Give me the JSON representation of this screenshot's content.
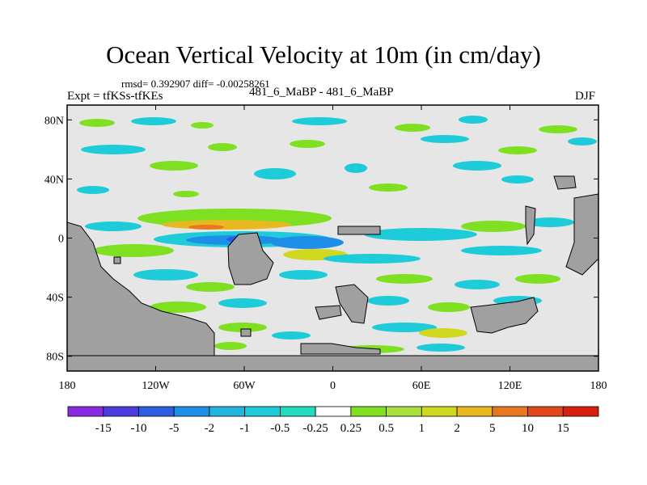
{
  "chart_data": {
    "type": "heatmap",
    "title": "Ocean Vertical Velocity at 10m (in cm/day)",
    "stats_text": "rmsd= 0.392907  diff= -0.00258261",
    "experiment_label": "Expt = tfKSs-tfKEs",
    "subtitle": "481_6_MaBP - 481_6_MaBP",
    "season": "DJF",
    "x_axis": {
      "range": [
        -180,
        180
      ],
      "ticks": [
        {
          "value": -180,
          "label": "180"
        },
        {
          "value": -120,
          "label": "120W"
        },
        {
          "value": -60,
          "label": "60W"
        },
        {
          "value": 0,
          "label": "0"
        },
        {
          "value": 60,
          "label": "60E"
        },
        {
          "value": 120,
          "label": "120E"
        },
        {
          "value": 180,
          "label": "180"
        }
      ]
    },
    "y_axis": {
      "range": [
        -90,
        90
      ],
      "ticks": [
        {
          "value": 80,
          "label": "80N"
        },
        {
          "value": 40,
          "label": "40N"
        },
        {
          "value": 0,
          "label": "0"
        },
        {
          "value": -40,
          "label": "40S"
        },
        {
          "value": -80,
          "label": "80S"
        }
      ]
    },
    "colorbar": {
      "levels": [
        "-15",
        "-10",
        "-5",
        "-2",
        "-1",
        "-0.5",
        "-0.25",
        "0.25",
        "0.5",
        "1",
        "2",
        "5",
        "10",
        "15"
      ],
      "colors": [
        "#8a2be2",
        "#4b3ce0",
        "#2b5fe0",
        "#1e8fe8",
        "#22b5e0",
        "#1ecbd8",
        "#20dcc0",
        "#ffffff",
        "#7ee020",
        "#a8e040",
        "#d0d820",
        "#e8b820",
        "#e87820",
        "#e04818",
        "#d82010"
      ]
    },
    "land_color": "#a0a0a0",
    "ocean_neutral_color": "#e6e6e6"
  }
}
